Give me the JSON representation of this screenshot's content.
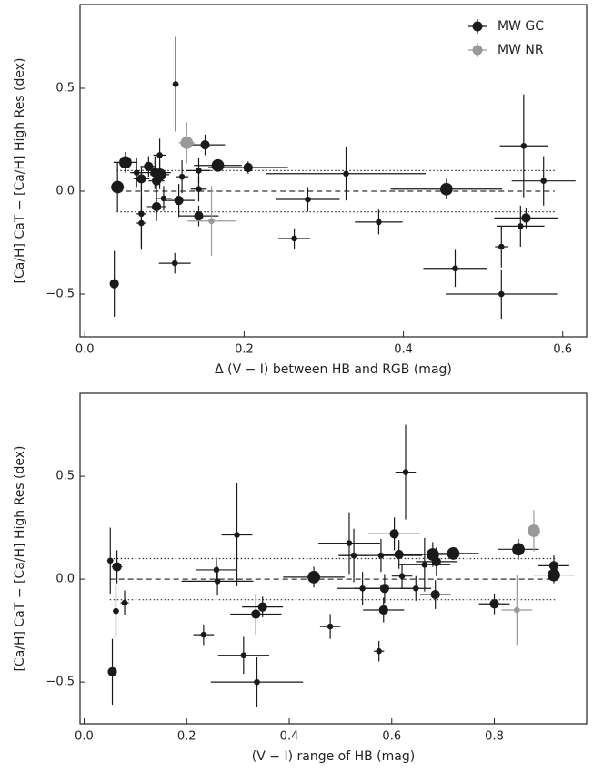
{
  "chart_data": [
    {
      "type": "scatter",
      "xlabel": "Δ (V − I) between HB and RGB (mag)",
      "ylabel": "[Ca/H] CaT − [Ca/H] High Res (dex)",
      "xlim": [
        -0.006,
        0.63
      ],
      "ylim": [
        -0.708,
        0.907
      ],
      "xticks": [
        {
          "value": 0,
          "label": "0.0"
        },
        {
          "value": 0.2,
          "label": "0.2"
        },
        {
          "value": 0.4,
          "label": "0.4"
        },
        {
          "value": 0.6,
          "label": "0.6"
        }
      ],
      "yticks": [
        {
          "value": -0.5,
          "label": "−0.5"
        },
        {
          "value": 0,
          "label": "0.0"
        },
        {
          "value": 0.5,
          "label": "0.5"
        }
      ],
      "legend": "upper right",
      "hlines": [
        {
          "y": 0.1,
          "style": "dotted",
          "x": [
            0.04,
            0.59
          ]
        },
        {
          "y": 0,
          "style": "dashed",
          "x": [
            0.04,
            0.59
          ]
        },
        {
          "y": -0.1,
          "style": "dotted",
          "x": [
            0.04,
            0.59
          ]
        }
      ],
      "series": [
        {
          "name": "MW GC",
          "color": "#1a1a1a",
          "x": [
            0.037,
            0.041,
            0.051,
            0.065,
            0.071,
            0.071,
            0.071,
            0.08,
            0.088,
            0.09,
            0.09,
            0.094,
            0.094,
            0.099,
            0.114,
            0.118,
            0.113,
            0.122,
            0.143,
            0.143,
            0.143,
            0.151,
            0.167,
            0.205,
            0.28,
            0.263,
            0.328,
            0.369,
            0.454,
            0.465,
            0.551,
            0.554,
            0.547,
            0.523,
            0.523,
            0.576
          ],
          "values": [
            -0.45,
            0.02,
            0.14,
            0.09,
            0.06,
            -0.11,
            -0.155,
            0.12,
            0.09,
            0.05,
            -0.075,
            0.175,
            0.08,
            -0.035,
            0.52,
            -0.045,
            -0.35,
            0.07,
            0.1,
            0.01,
            -0.12,
            0.225,
            0.125,
            0.115,
            -0.04,
            -0.23,
            0.085,
            -0.15,
            0.01,
            -0.375,
            0.22,
            -0.13,
            -0.17,
            -0.27,
            -0.5,
            0.05
          ],
          "xerr": [
            0.004,
            0.008,
            0.015,
            0.008,
            0.01,
            0.006,
            0.006,
            0.01,
            0.02,
            0.01,
            0.012,
            0.008,
            0.012,
            0.01,
            0.004,
            0.02,
            0.02,
            0.008,
            0.015,
            0.01,
            0.025,
            0.025,
            0.03,
            0.05,
            0.04,
            0.02,
            0.1,
            0.03,
            0.07,
            0.04,
            0.03,
            0.04,
            0.03,
            0.008,
            0.07,
            0.04
          ],
          "yerr": [
            0.16,
            0.12,
            0.05,
            0.07,
            0.06,
            0.16,
            0.13,
            0.05,
            0.08,
            0.06,
            0.07,
            0.08,
            0.07,
            0.06,
            0.23,
            0.08,
            0.05,
            0.08,
            0.06,
            0.06,
            0.05,
            0.05,
            0.03,
            0.03,
            0.06,
            0.05,
            0.13,
            0.06,
            0.05,
            0.09,
            0.25,
            0.05,
            0.1,
            0.1,
            0.12,
            0.12
          ],
          "sizes": [
            2,
            3,
            3,
            1,
            2,
            1,
            1,
            2,
            2,
            2,
            2,
            1,
            3,
            1,
            1,
            2,
            1,
            1,
            1,
            1,
            2,
            2,
            3,
            2,
            1,
            1,
            1,
            1,
            3,
            1,
            1,
            2,
            1,
            1,
            1,
            1
          ]
        },
        {
          "name": "MW NR",
          "color": "#999999",
          "x": [
            0.128,
            0.159
          ],
          "values": [
            0.235,
            -0.145
          ],
          "xerr": [
            0.01,
            0.03
          ],
          "yerr": [
            0.1,
            0.17
          ],
          "sizes": [
            3,
            1
          ]
        }
      ]
    },
    {
      "type": "scatter",
      "xlabel": "(V − I) range of HB (mag)",
      "ylabel": "[Ca/H] CaT − [Ca/H] High Res (dex)",
      "xlim": [
        -0.008,
        0.98
      ],
      "ylim": [
        -0.703,
        0.903
      ],
      "xticks": [
        {
          "value": 0,
          "label": "0.0"
        },
        {
          "value": 0.2,
          "label": "0.2"
        },
        {
          "value": 0.4,
          "label": "0.4"
        },
        {
          "value": 0.6,
          "label": "0.6"
        },
        {
          "value": 0.8,
          "label": "0.8"
        }
      ],
      "yticks": [
        {
          "value": -0.5,
          "label": "−0.5"
        },
        {
          "value": 0,
          "label": "0.0"
        },
        {
          "value": 0.5,
          "label": "0.5"
        }
      ],
      "hlines": [
        {
          "y": 0.1,
          "style": "dotted",
          "x": [
            0.05,
            0.92
          ]
        },
        {
          "y": 0,
          "style": "dashed",
          "x": [
            0.05,
            0.92
          ]
        },
        {
          "y": -0.1,
          "style": "dotted",
          "x": [
            0.05,
            0.92
          ]
        }
      ],
      "series": [
        {
          "name": "MW GC",
          "color": "#1a1a1a",
          "x": [
            0.055,
            0.051,
            0.062,
            0.064,
            0.079,
            0.233,
            0.258,
            0.26,
            0.298,
            0.311,
            0.335,
            0.337,
            0.348,
            0.448,
            0.48,
            0.517,
            0.526,
            0.543,
            0.575,
            0.579,
            0.584,
            0.586,
            0.605,
            0.614,
            0.62,
            0.627,
            0.647,
            0.664,
            0.68,
            0.687,
            0.685,
            0.72,
            0.8,
            0.847,
            0.916,
            0.916
          ],
          "values": [
            -0.45,
            0.09,
            -0.155,
            0.06,
            -0.115,
            -0.27,
            0.045,
            -0.01,
            0.215,
            -0.37,
            -0.17,
            -0.5,
            -0.135,
            0.01,
            -0.23,
            0.175,
            0.115,
            -0.045,
            -0.35,
            0.115,
            -0.15,
            -0.045,
            0.22,
            0.12,
            0.015,
            0.52,
            -0.045,
            0.07,
            0.12,
            0.085,
            -0.075,
            0.125,
            -0.12,
            0.145,
            0.065,
            0.02
          ],
          "xerr": [
            0.004,
            0.006,
            0.006,
            0.01,
            0.008,
            0.02,
            0.04,
            0.07,
            0.03,
            0.05,
            0.05,
            0.09,
            0.04,
            0.06,
            0.02,
            0.06,
            0.03,
            0.05,
            0.01,
            0.08,
            0.04,
            0.06,
            0.05,
            0.04,
            0.02,
            0.02,
            0.03,
            0.05,
            0.03,
            0.04,
            0.03,
            0.05,
            0.03,
            0.04,
            0.03,
            0.04
          ],
          "yerr": [
            0.16,
            0.16,
            0.13,
            0.08,
            0.06,
            0.05,
            0.06,
            0.07,
            0.25,
            0.09,
            0.1,
            0.12,
            0.05,
            0.05,
            0.06,
            0.15,
            0.13,
            0.08,
            0.05,
            0.08,
            0.06,
            0.07,
            0.08,
            0.07,
            0.06,
            0.23,
            0.06,
            0.13,
            0.06,
            0.07,
            0.07,
            0.03,
            0.05,
            0.05,
            0.05,
            0.04
          ],
          "sizes": [
            2,
            1,
            1,
            2,
            1,
            1,
            1,
            1,
            1,
            1,
            2,
            1,
            2,
            3,
            1,
            1,
            1,
            1,
            1,
            1,
            2,
            2,
            2,
            2,
            1,
            1,
            1,
            1,
            3,
            2,
            2,
            3,
            2,
            3,
            2,
            3
          ]
        },
        {
          "name": "MW NR",
          "color": "#999999",
          "x": [
            0.877,
            0.844
          ],
          "values": [
            0.235,
            -0.15
          ],
          "xerr": [
            0.01,
            0.03
          ],
          "yerr": [
            0.1,
            0.17
          ],
          "sizes": [
            3,
            1
          ]
        }
      ]
    }
  ]
}
